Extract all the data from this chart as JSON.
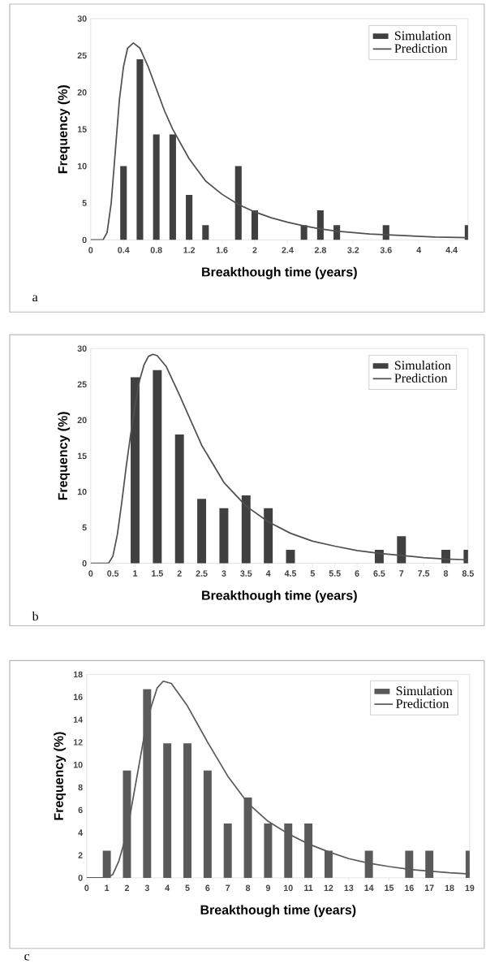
{
  "chart_data": [
    {
      "type": "bar",
      "xlabel": "Breakthough time (years)",
      "ylabel": "Frequency (%)",
      "xlim": [
        0,
        4.6
      ],
      "ylim": [
        0,
        30
      ],
      "xticks": [
        0,
        0.4,
        0.8,
        1.2,
        1.6,
        2,
        2.4,
        2.8,
        3.2,
        3.6,
        4,
        4.4
      ],
      "yticks": [
        0,
        5,
        10,
        15,
        20,
        25,
        30
      ],
      "legend": "top right",
      "annotations": [
        "a"
      ],
      "series": [
        {
          "name": "Simulation",
          "color": "#404040",
          "x": [
            0.4,
            0.6,
            0.8,
            1.0,
            1.2,
            1.4,
            1.8,
            2.0,
            2.6,
            2.8,
            3.0,
            3.6,
            4.6
          ],
          "values": [
            10,
            24.5,
            14.3,
            14.3,
            6.1,
            2,
            10,
            4,
            2,
            4,
            2,
            2,
            2
          ]
        },
        {
          "name": "Prediction",
          "type": "line",
          "color": "#505050",
          "x": [
            0,
            0.15,
            0.2,
            0.25,
            0.3,
            0.35,
            0.4,
            0.45,
            0.52,
            0.6,
            0.7,
            0.8,
            0.9,
            1.0,
            1.2,
            1.4,
            1.6,
            1.8,
            2.0,
            2.2,
            2.4,
            2.6,
            2.8,
            3.0,
            3.4,
            3.8,
            4.2,
            4.6
          ],
          "values": [
            0,
            0,
            1,
            5,
            12,
            19,
            23.5,
            26,
            26.7,
            26,
            23.5,
            20.5,
            17.5,
            15,
            11,
            8,
            6.2,
            4.8,
            3.8,
            3,
            2.4,
            1.9,
            1.5,
            1.2,
            0.8,
            0.6,
            0.4,
            0.3
          ]
        }
      ]
    },
    {
      "type": "bar",
      "xlabel": "Breakthough time (years)",
      "ylabel": "Frequency (%)",
      "xlim": [
        0,
        8.5
      ],
      "ylim": [
        0,
        30
      ],
      "xticks": [
        0,
        0.5,
        1,
        1.5,
        2,
        2.5,
        3,
        3.5,
        4,
        4.5,
        5,
        5.5,
        6,
        6.5,
        7,
        7.5,
        8,
        8.5
      ],
      "yticks": [
        0,
        5,
        10,
        15,
        20,
        25,
        30
      ],
      "legend": "top right",
      "annotations": [
        "b"
      ],
      "series": [
        {
          "name": "Simulation",
          "color": "#404040",
          "x": [
            1,
            1.5,
            2,
            2.5,
            3,
            3.5,
            4,
            4.5,
            6.5,
            7,
            8,
            8.5
          ],
          "values": [
            26,
            27,
            18,
            9,
            7.7,
            9.5,
            7.7,
            1.9,
            1.9,
            3.8,
            1.9,
            1.9
          ]
        },
        {
          "name": "Prediction",
          "type": "line",
          "color": "#505050",
          "x": [
            0,
            0.4,
            0.5,
            0.6,
            0.7,
            0.8,
            0.9,
            1.0,
            1.1,
            1.2,
            1.3,
            1.4,
            1.5,
            1.7,
            2.0,
            2.5,
            3.0,
            3.5,
            4.0,
            4.5,
            5.0,
            5.5,
            6.0,
            6.5,
            7.0,
            7.5,
            8.0,
            8.5
          ],
          "values": [
            0,
            0,
            1,
            4,
            8.5,
            13.5,
            18,
            22,
            25.5,
            27.7,
            28.9,
            29.2,
            29,
            27.5,
            23.5,
            16.5,
            11.3,
            8,
            5.8,
            4.2,
            3.1,
            2.4,
            1.8,
            1.4,
            1.1,
            0.8,
            0.6,
            0.5
          ]
        }
      ]
    },
    {
      "type": "bar",
      "xlabel": "Breakthough time (years)",
      "ylabel": "Frequency (%)",
      "xlim": [
        0,
        19
      ],
      "ylim": [
        0,
        18
      ],
      "xticks": [
        0,
        1,
        2,
        3,
        4,
        5,
        6,
        7,
        8,
        9,
        10,
        11,
        12,
        13,
        14,
        15,
        16,
        17,
        18,
        19
      ],
      "yticks": [
        0,
        2,
        4,
        6,
        8,
        10,
        12,
        14,
        16,
        18
      ],
      "legend": "top right",
      "annotations": [
        "c"
      ],
      "series": [
        {
          "name": "Simulation",
          "color": "#5a5a5a",
          "x": [
            1,
            2,
            3,
            4,
            5,
            6,
            7,
            8,
            9,
            10,
            11,
            12,
            14,
            16,
            17,
            19
          ],
          "values": [
            2.4,
            9.5,
            16.7,
            11.9,
            11.9,
            9.5,
            4.8,
            7.1,
            4.8,
            4.8,
            4.8,
            2.4,
            2.4,
            2.4,
            2.4,
            2.4
          ]
        },
        {
          "name": "Prediction",
          "type": "line",
          "color": "#5a5a5a",
          "x": [
            0,
            1,
            1.3,
            1.6,
            2,
            2.5,
            3,
            3.5,
            3.8,
            4.2,
            5,
            6,
            7,
            8,
            9,
            10,
            11,
            12,
            13,
            14,
            15,
            16,
            17,
            18,
            19
          ],
          "values": [
            0,
            0,
            0.3,
            1.5,
            4,
            9,
            14,
            16.8,
            17.4,
            17.2,
            15.2,
            12,
            9,
            6.6,
            5,
            3.9,
            3,
            2.3,
            1.7,
            1.3,
            1,
            0.75,
            0.6,
            0.45,
            0.35
          ]
        }
      ]
    }
  ]
}
